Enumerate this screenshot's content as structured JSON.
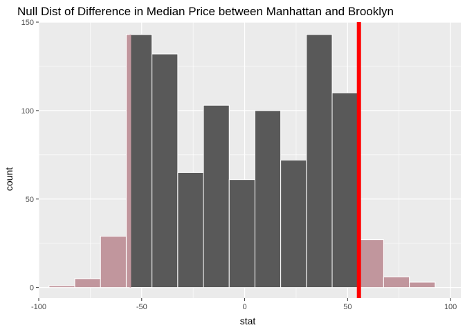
{
  "chart_data": {
    "type": "bar",
    "title": "Null Dist of Difference in Median Price between Manhattan and Brooklyn",
    "xlabel": "stat",
    "ylabel": "count",
    "xlim": [
      -100,
      105
    ],
    "ylim": [
      -6,
      150
    ],
    "xticks": [
      -100,
      -50,
      0,
      50,
      100
    ],
    "yticks": [
      0,
      50,
      100,
      150
    ],
    "grid": true,
    "colors": {
      "panel": "#ebebeb",
      "grid": "#ffffff",
      "bar_fill": "#595959",
      "bar_stroke": "#ffffff",
      "shade": "#c1969d",
      "observed_line": "#ff0000"
    },
    "bins": [
      {
        "x0": -95.0,
        "x1": -82.5,
        "count": 1
      },
      {
        "x0": -82.5,
        "x1": -70.0,
        "count": 5
      },
      {
        "x0": -70.0,
        "x1": -57.5,
        "count": 29
      },
      {
        "x0": -57.5,
        "x1": -45.0,
        "count": 143
      },
      {
        "x0": -45.0,
        "x1": -32.5,
        "count": 132
      },
      {
        "x0": -32.5,
        "x1": -20.0,
        "count": 65
      },
      {
        "x0": -20.0,
        "x1": -7.5,
        "count": 103
      },
      {
        "x0": -7.5,
        "x1": 5.0,
        "count": 61
      },
      {
        "x0": 5.0,
        "x1": 17.5,
        "count": 100
      },
      {
        "x0": 17.5,
        "x1": 30.0,
        "count": 72
      },
      {
        "x0": 30.0,
        "x1": 42.5,
        "count": 143
      },
      {
        "x0": 42.5,
        "x1": 55.0,
        "count": 110
      },
      {
        "x0": 55.0,
        "x1": 67.5,
        "count": 27
      },
      {
        "x0": 67.5,
        "x1": 80.0,
        "count": 6
      },
      {
        "x0": 80.0,
        "x1": 92.5,
        "count": 3
      }
    ],
    "shaded_regions": [
      {
        "from": -102,
        "to": -55.5
      },
      {
        "from": 55.5,
        "to": 105
      }
    ],
    "observed_stat": 55.5
  }
}
